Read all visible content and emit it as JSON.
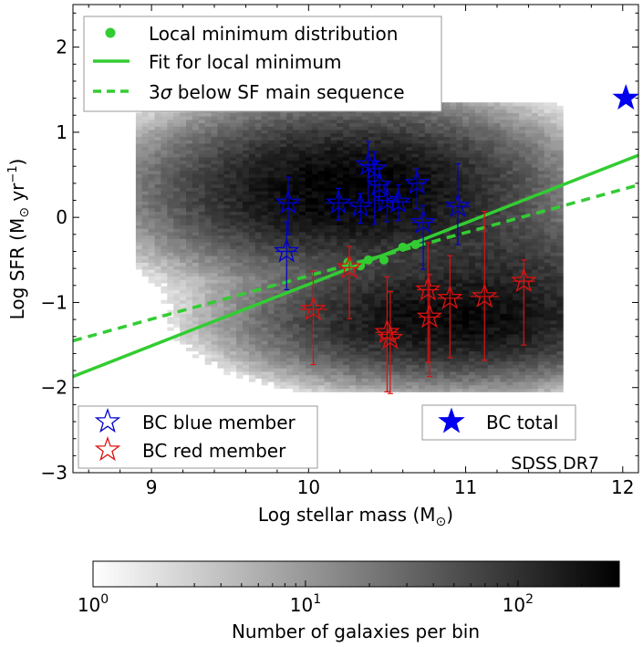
{
  "chart_data": {
    "type": "scatter",
    "title": "",
    "xlabel": "Log stellar mass",
    "xlabel_unit": "(M",
    "xlabel_unit_close": ")",
    "ylabel": "Log SFR",
    "ylabel_unit": "(M",
    "ylabel_unit_mid": " yr",
    "ylabel_unit_exp": "−1",
    "ylabel_unit_close": ")",
    "xlim": [
      8.5,
      12.1
    ],
    "ylim": [
      -3,
      2.5
    ],
    "xticks": [
      9,
      10,
      11,
      12
    ],
    "yticks": [
      -3,
      -2,
      -1,
      0,
      1,
      2
    ],
    "ytick_labels": [
      "−3",
      "−2",
      "−1",
      "0",
      "1",
      "2"
    ],
    "annotation": "SDSS DR7",
    "legend_top": {
      "local_min": "Local minimum distribution",
      "fit": "Fit for local minimum",
      "sigma_prefix": "3",
      "sigma_symbol": "σ",
      "sigma_suffix": " below SF main sequence"
    },
    "legend_members": {
      "blue": "BC blue member",
      "red": "BC red member"
    },
    "legend_total": "BC total",
    "colors": {
      "green": "#33cc33",
      "blue": "#0000cc",
      "red": "#dd1111",
      "total": "#0000ee"
    },
    "local_minimum": {
      "x": [
        10.25,
        10.33,
        10.38,
        10.48,
        10.6,
        10.68
      ],
      "y": [
        -0.53,
        -0.57,
        -0.5,
        -0.5,
        -0.35,
        -0.32
      ]
    },
    "fit_line": {
      "x": [
        8.5,
        12.1
      ],
      "y": [
        -1.87,
        0.73
      ]
    },
    "sf_sequence_line": {
      "x": [
        8.5,
        12.1
      ],
      "y": [
        -1.45,
        0.38
      ]
    },
    "blue_members": [
      {
        "x": 9.87,
        "y": 0.17,
        "xerr": 0.07,
        "yerr_low": 0.37,
        "yerr_high": 0.3
      },
      {
        "x": 9.86,
        "y": -0.4,
        "xerr": 0.07,
        "yerr_low": 0.45,
        "yerr_high": 0.35
      },
      {
        "x": 10.19,
        "y": 0.17,
        "xerr": 0.08,
        "yerr_low": 0.2,
        "yerr_high": 0.17
      },
      {
        "x": 10.33,
        "y": 0.13,
        "xerr": 0.07,
        "yerr_low": 0.2,
        "yerr_high": 0.15
      },
      {
        "x": 10.38,
        "y": 0.62,
        "xerr": 0.06,
        "yerr_low": 0.45,
        "yerr_high": 0.27
      },
      {
        "x": 10.42,
        "y": 0.57,
        "xerr": 0.05,
        "yerr_low": 0.65,
        "yerr_high": 0.2
      },
      {
        "x": 10.45,
        "y": 0.38,
        "xerr": 0.06,
        "yerr_low": 0.3,
        "yerr_high": 0.2
      },
      {
        "x": 10.5,
        "y": 0.2,
        "xerr": 0.07,
        "yerr_low": 0.25,
        "yerr_high": 0.2
      },
      {
        "x": 10.57,
        "y": 0.18,
        "xerr": 0.08,
        "yerr_low": 0.22,
        "yerr_high": 0.2
      },
      {
        "x": 10.69,
        "y": 0.4,
        "xerr": 0.06,
        "yerr_low": 0.3,
        "yerr_high": 0.17
      },
      {
        "x": 10.73,
        "y": -0.06,
        "xerr": 0.07,
        "yerr_low": 0.55,
        "yerr_high": 0.2
      },
      {
        "x": 10.95,
        "y": 0.13,
        "xerr": 0.08,
        "yerr_low": 0.45,
        "yerr_high": 0.5
      }
    ],
    "red_members": [
      {
        "x": 10.26,
        "y": -0.59,
        "xerr": 0.06,
        "yerr_low": 0.6,
        "yerr_high": 0.25
      },
      {
        "x": 10.03,
        "y": -1.08,
        "xerr": 0.09,
        "yerr_low": 0.65,
        "yerr_high": 0.45
      },
      {
        "x": 10.5,
        "y": -1.35,
        "xerr": 0.07,
        "yerr_low": 0.7,
        "yerr_high": 0.65
      },
      {
        "x": 10.52,
        "y": -1.42,
        "xerr": 0.06,
        "yerr_low": 0.65,
        "yerr_high": 0.55
      },
      {
        "x": 10.76,
        "y": -0.85,
        "xerr": 0.07,
        "yerr_low": 0.85,
        "yerr_high": 0.55
      },
      {
        "x": 10.77,
        "y": -1.17,
        "xerr": 0.07,
        "yerr_low": 0.7,
        "yerr_high": 0.5
      },
      {
        "x": 10.9,
        "y": -0.95,
        "xerr": 0.08,
        "yerr_low": 0.7,
        "yerr_high": 0.5
      },
      {
        "x": 11.12,
        "y": -0.93,
        "xerr": 0.09,
        "yerr_low": 0.75,
        "yerr_high": 1.0
      },
      {
        "x": 11.37,
        "y": -0.75,
        "xerr": 0.07,
        "yerr_low": 0.75,
        "yerr_high": 0.25
      }
    ],
    "bc_total": {
      "x": 12.02,
      "y": 1.4
    },
    "heatmap": {
      "lobes": [
        {
          "cx": 10.25,
          "cy": 0.3,
          "sx": 0.55,
          "sy": 0.42,
          "peak": 300
        },
        {
          "cx": 10.9,
          "cy": -1.2,
          "sx": 0.55,
          "sy": 0.32,
          "peak": 250
        },
        {
          "cx": 11.25,
          "cy": -0.55,
          "sx": 0.4,
          "sy": 0.3,
          "peak": 60
        }
      ],
      "x_range": [
        8.9,
        11.6
      ],
      "y_range": [
        -2.05,
        1.35
      ],
      "bin": 0.04
    },
    "colorbar": {
      "label": "Number of galaxies per bin",
      "ticks": [
        {
          "value": 1,
          "base": "10",
          "exp": "0"
        },
        {
          "value": 10,
          "base": "10",
          "exp": "1"
        },
        {
          "value": 100,
          "base": "10",
          "exp": "2"
        }
      ],
      "min": 1,
      "max": 300
    }
  }
}
